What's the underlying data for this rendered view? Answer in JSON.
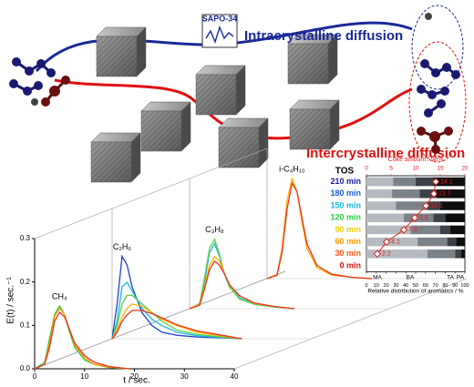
{
  "diagram": {
    "sapo_label": "SAPO-34",
    "intra_label": "Intracrystalline diffusion",
    "inter_label": "Intercrystalline diffusion"
  },
  "chart_data": [
    {
      "type": "line",
      "xlabel": "t / sec.",
      "ylabel": "E(t) / sec.⁻¹",
      "xlim": [
        0,
        40
      ],
      "xticks": [
        0,
        10,
        20,
        30,
        40
      ],
      "ylim": [
        0,
        0.3
      ],
      "yticks": [
        {
          "value": 0,
          "label": "0.0"
        },
        0.1,
        0.2,
        0.3
      ],
      "panels": [
        {
          "label": "CH₄",
          "x": [
            0,
            2,
            3,
            4,
            5,
            6,
            7,
            8,
            10,
            12,
            15,
            19
          ],
          "series": [
            {
              "color": "#2ecc40",
              "values": [
                0,
                0.015,
                0.07,
                0.125,
                0.145,
                0.125,
                0.085,
                0.05,
                0.02,
                0.01,
                0.003,
                0
              ]
            },
            {
              "color": "#ff9900",
              "values": [
                0,
                0.01,
                0.06,
                0.12,
                0.14,
                0.125,
                0.09,
                0.055,
                0.025,
                0.01,
                0.004,
                0
              ]
            },
            {
              "color": "#e8321e",
              "values": [
                0,
                0.01,
                0.05,
                0.11,
                0.13,
                0.12,
                0.09,
                0.06,
                0.03,
                0.015,
                0.005,
                0
              ]
            }
          ]
        },
        {
          "label": "C₂H₆",
          "x": [
            0,
            1,
            2,
            3,
            4,
            6,
            8,
            10,
            13,
            17,
            22,
            26
          ],
          "series": [
            {
              "color": "#1f3fd0",
              "values": [
                0,
                0.08,
                0.19,
                0.17,
                0.12,
                0.06,
                0.03,
                0.015,
                0.008,
                0.004,
                0.002,
                0
              ]
            },
            {
              "color": "#19b8e0",
              "values": [
                0,
                0.04,
                0.12,
                0.13,
                0.11,
                0.07,
                0.045,
                0.03,
                0.015,
                0.007,
                0.003,
                0
              ]
            },
            {
              "color": "#5ad040",
              "values": [
                0,
                0.03,
                0.08,
                0.1,
                0.1,
                0.08,
                0.06,
                0.04,
                0.02,
                0.01,
                0.004,
                0
              ]
            },
            {
              "color": "#ffb000",
              "values": [
                0,
                0.02,
                0.05,
                0.07,
                0.08,
                0.075,
                0.06,
                0.045,
                0.03,
                0.015,
                0.006,
                0
              ]
            },
            {
              "color": "#e8321e",
              "values": [
                0,
                0.015,
                0.04,
                0.055,
                0.065,
                0.065,
                0.058,
                0.048,
                0.032,
                0.018,
                0.008,
                0
              ]
            }
          ]
        },
        {
          "label": "C₃H₈",
          "x": [
            0,
            2,
            3,
            4,
            5,
            6,
            7,
            8,
            10,
            13,
            17,
            21
          ],
          "series": [
            {
              "color": "#19b8e0",
              "values": [
                0,
                0.01,
                0.06,
                0.13,
                0.15,
                0.12,
                0.08,
                0.05,
                0.025,
                0.01,
                0.004,
                0
              ]
            },
            {
              "color": "#5ad040",
              "values": [
                0,
                0.012,
                0.07,
                0.14,
                0.16,
                0.125,
                0.08,
                0.05,
                0.022,
                0.01,
                0.004,
                0
              ]
            },
            {
              "color": "#ffb000",
              "values": [
                0,
                0.01,
                0.05,
                0.1,
                0.12,
                0.11,
                0.08,
                0.055,
                0.03,
                0.012,
                0.005,
                0
              ]
            },
            {
              "color": "#e8321e",
              "values": [
                0,
                0.008,
                0.045,
                0.09,
                0.11,
                0.1,
                0.08,
                0.055,
                0.03,
                0.013,
                0.005,
                0
              ]
            }
          ]
        },
        {
          "label": "i-C₄H₁₀",
          "x": [
            0,
            2,
            3,
            4,
            5,
            6,
            7,
            8,
            10,
            13,
            17,
            21
          ],
          "series": [
            {
              "color": "#ffb000",
              "values": [
                0,
                0.01,
                0.07,
                0.18,
                0.23,
                0.2,
                0.13,
                0.07,
                0.025,
                0.008,
                0.003,
                0
              ]
            },
            {
              "color": "#e8321e",
              "values": [
                0,
                0.008,
                0.06,
                0.16,
                0.22,
                0.2,
                0.14,
                0.08,
                0.03,
                0.01,
                0.003,
                0
              ]
            }
          ]
        }
      ]
    },
    {
      "type": "bar",
      "orientation": "horizontal",
      "stacked": true,
      "header": "TOS",
      "categories": [
        "210 min",
        "180 min",
        "150 min",
        "120 min",
        "90 min",
        "60 min",
        "30 min",
        "0 min"
      ],
      "category_colors": [
        "#1a1aa0",
        "#1f5fe0",
        "#19b8e0",
        "#2ecc40",
        "#f0d000",
        "#ff9900",
        "#ff5a1a",
        "#e01010"
      ],
      "xlabel": "Relative distribution of aromatics / %",
      "xlim": [
        0,
        100
      ],
      "xticks": [
        0,
        10,
        20,
        30,
        40,
        50,
        60,
        70,
        80,
        90,
        100
      ],
      "series": [
        {
          "name": "MA",
          "color": "#b4babf",
          "values": [
            27,
            26,
            30,
            38,
            45,
            52,
            62,
            null
          ]
        },
        {
          "name": "BA",
          "color": "#7b8288",
          "values": [
            23,
            28,
            32,
            30,
            30,
            30,
            28,
            null
          ]
        },
        {
          "name": "TA",
          "color": "#3c4147",
          "values": [
            18,
            17,
            13,
            12,
            10,
            9,
            6,
            null
          ]
        },
        {
          "name": "PA",
          "color": "#0e0e0e",
          "values": [
            32,
            29,
            25,
            20,
            15,
            9,
            4,
            null
          ]
        }
      ],
      "coke": {
        "name": "Coke amount / wt%",
        "color": "#e02020",
        "xlim": [
          0,
          20
        ],
        "xticks": [
          0,
          5,
          10,
          15,
          20
        ],
        "values": [
          14.1,
          13.7,
          12.1,
          9.8,
          7.6,
          4.1,
          2.2,
          null
        ]
      }
    }
  ]
}
